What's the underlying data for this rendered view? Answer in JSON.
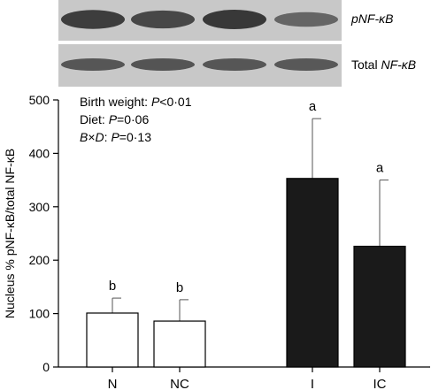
{
  "blot": {
    "labels": [
      "pNF-κB",
      "Total NF-κB"
    ],
    "rows": [
      {
        "label_italic_prefix": "pNF-κB",
        "band_intensity": [
          0.95,
          0.85,
          1.0,
          0.55
        ]
      },
      {
        "label_prefix": "Total ",
        "label_italic": "NF-κB",
        "band_intensity": [
          0.7,
          0.72,
          0.7,
          0.68
        ]
      }
    ]
  },
  "stats": {
    "line1_text": "Birth weight: ",
    "line1_p": "P",
    "line1_rest": "<0·01",
    "line2_text": "Diet: ",
    "line2_p": "P",
    "line2_rest": "=0·06",
    "line3_a": "B",
    "line3_x": "×",
    "line3_b": "D",
    "line3_mid": ": ",
    "line3_p": "P",
    "line3_rest": "=0·13"
  },
  "chart_data": {
    "type": "bar",
    "categories": [
      "N",
      "NC",
      "I",
      "IC"
    ],
    "values": [
      101,
      86,
      353,
      226
    ],
    "errors": [
      28,
      40,
      112,
      124
    ],
    "significance_letters": [
      "b",
      "b",
      "a",
      "a"
    ],
    "bar_colors": [
      "#ffffff",
      "#ffffff",
      "#1a1a1a",
      "#1a1a1a"
    ],
    "ylabel": "Nucleus % pNF-κB/total NF-κB",
    "xlabel": "",
    "ylim": [
      0,
      500
    ],
    "yticks": [
      0,
      100,
      200,
      300,
      400,
      500
    ],
    "grid": false
  }
}
